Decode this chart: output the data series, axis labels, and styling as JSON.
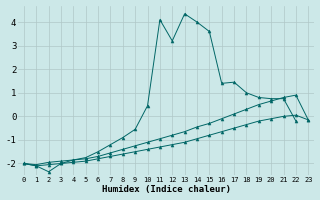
{
  "xlabel": "Humidex (Indice chaleur)",
  "ylabel": "",
  "bg_color": "#cce8e8",
  "grid_color": "#b0c8c8",
  "line_color": "#006666",
  "xlim": [
    -0.5,
    23.5
  ],
  "ylim": [
    -2.5,
    4.7
  ],
  "xticks": [
    0,
    1,
    2,
    3,
    4,
    5,
    6,
    7,
    8,
    9,
    10,
    11,
    12,
    13,
    14,
    15,
    16,
    17,
    18,
    19,
    20,
    21,
    22,
    23
  ],
  "yticks": [
    -2,
    -1,
    0,
    1,
    2,
    3,
    4
  ],
  "series1_x": [
    0,
    1,
    2,
    3,
    4,
    5,
    6,
    7,
    8,
    9,
    10,
    11,
    12,
    13,
    14,
    15,
    16,
    17,
    18,
    19,
    20,
    21,
    22
  ],
  "series1_y": [
    -2.0,
    -2.1,
    -2.35,
    -2.0,
    -1.85,
    -1.75,
    -1.5,
    -1.2,
    -0.9,
    -0.55,
    0.45,
    4.1,
    3.2,
    4.35,
    4.0,
    3.6,
    1.4,
    1.45,
    1.0,
    0.8,
    0.75,
    0.75,
    -0.2
  ],
  "series2_x": [
    0,
    1,
    2,
    3,
    4,
    5,
    6,
    7,
    8,
    9,
    10,
    11,
    12,
    13,
    14,
    15,
    16,
    17,
    18,
    19,
    20,
    21,
    22,
    23
  ],
  "series2_y": [
    -2.0,
    -2.1,
    -2.05,
    -2.0,
    -1.95,
    -1.9,
    -1.8,
    -1.7,
    -1.6,
    -1.5,
    -1.4,
    -1.3,
    -1.2,
    -1.1,
    -0.95,
    -0.8,
    -0.65,
    -0.5,
    -0.35,
    -0.2,
    -0.1,
    0.0,
    0.05,
    -0.15
  ],
  "series3_x": [
    0,
    1,
    2,
    3,
    4,
    5,
    6,
    7,
    8,
    9,
    10,
    11,
    12,
    13,
    14,
    15,
    16,
    17,
    18,
    19,
    20,
    21,
    22,
    23
  ],
  "series3_y": [
    -2.0,
    -2.05,
    -1.95,
    -1.9,
    -1.85,
    -1.8,
    -1.7,
    -1.55,
    -1.4,
    -1.25,
    -1.1,
    -0.95,
    -0.8,
    -0.65,
    -0.45,
    -0.3,
    -0.1,
    0.1,
    0.3,
    0.5,
    0.65,
    0.8,
    0.9,
    -0.15
  ]
}
